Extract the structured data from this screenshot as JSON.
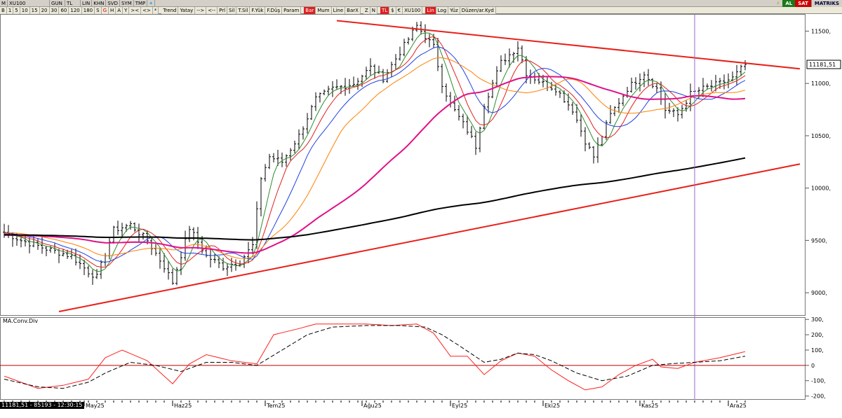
{
  "window": {
    "menu_letter": "M",
    "symbol_tab": "XU100",
    "period_tabs": [
      "GUN",
      "TL",
      "LIN",
      "KHN",
      "SVD",
      "SYM",
      "TMP"
    ]
  },
  "toolbar": {
    "intervals": [
      "B",
      "1",
      "5",
      "10",
      "15",
      "20",
      "30",
      "60",
      "120",
      "180",
      "S",
      "G",
      "H",
      "A",
      "Y"
    ],
    "nav": [
      "><",
      "<>"
    ],
    "tools": [
      "Trend",
      "Yatay",
      "-->",
      "<--",
      "Prl",
      "Sil",
      "T.Sil",
      "F.Yük",
      "F.Düş",
      "Param"
    ],
    "chart_types": [
      "Bar",
      "Mum",
      "Line",
      "BarX"
    ],
    "misc": [
      "Z",
      "N",
      "TL",
      "$",
      "€",
      "XU100",
      "Lin",
      "Log",
      "Yüz",
      "Düzen/ar.Kyd"
    ],
    "al_label": "AL",
    "sat_label": "SAT",
    "brand": "MATRIKS"
  },
  "status": {
    "text": "11181,51 - 85193 - 12:30:15"
  },
  "colors": {
    "price_bar": "#000000",
    "ma_green": "#2e8b2e",
    "ma_red": "#e02020",
    "ma_blue": "#2040e0",
    "ma_orange": "#ff8000",
    "ma_magenta": "#e0108a",
    "ma_black": "#000000",
    "trendline": "#e8201a",
    "macd": "#ff2020",
    "signal": "#000000",
    "zero_line": "#c00000",
    "cursor_line": "#9966cc"
  },
  "chart_data": [
    {
      "type": "ohlc",
      "title": "",
      "price_label": "11181,51",
      "last_price": 11181.51,
      "ylim": [
        8800,
        11650
      ],
      "y_ticks": [
        9000,
        9500,
        10000,
        10500,
        11000,
        11500
      ],
      "y_tick_labels": [
        "9000,",
        "9500,",
        "10000,",
        "10500,",
        "11000,",
        "11500,"
      ],
      "x_months": [
        {
          "label": "May25",
          "day": 19
        },
        {
          "label": "Haz25",
          "day": 40
        },
        {
          "label": "Tem25",
          "day": 62
        },
        {
          "label": "Ağu25",
          "day": 85
        },
        {
          "label": "Eyl25",
          "day": 106
        },
        {
          "label": "Eki25",
          "day": 128
        },
        {
          "label": "Kas25",
          "day": 151
        },
        {
          "label": "Ara25",
          "day": 172
        }
      ],
      "close_keypoints": [
        [
          0,
          9580
        ],
        [
          4,
          9500
        ],
        [
          10,
          9420
        ],
        [
          16,
          9350
        ],
        [
          20,
          9200
        ],
        [
          22,
          9150
        ],
        [
          26,
          9600
        ],
        [
          30,
          9650
        ],
        [
          34,
          9500
        ],
        [
          38,
          9250
        ],
        [
          40,
          9100
        ],
        [
          44,
          9620
        ],
        [
          48,
          9350
        ],
        [
          52,
          9250
        ],
        [
          56,
          9300
        ],
        [
          59,
          9450
        ],
        [
          61,
          10100
        ],
        [
          63,
          10300
        ],
        [
          66,
          10250
        ],
        [
          70,
          10500
        ],
        [
          74,
          10850
        ],
        [
          78,
          10950
        ],
        [
          83,
          11000
        ],
        [
          87,
          11150
        ],
        [
          90,
          11050
        ],
        [
          94,
          11300
        ],
        [
          98,
          11550
        ],
        [
          102,
          11350
        ],
        [
          104,
          11000
        ],
        [
          106,
          10800
        ],
        [
          110,
          10550
        ],
        [
          112,
          10400
        ],
        [
          114,
          10800
        ],
        [
          118,
          11200
        ],
        [
          122,
          11350
        ],
        [
          124,
          11100
        ],
        [
          128,
          11000
        ],
        [
          131,
          10950
        ],
        [
          135,
          10750
        ],
        [
          138,
          10450
        ],
        [
          140,
          10300
        ],
        [
          144,
          10700
        ],
        [
          148,
          10950
        ],
        [
          152,
          11100
        ],
        [
          155,
          10950
        ],
        [
          157,
          10750
        ],
        [
          160,
          10700
        ],
        [
          163,
          10900
        ],
        [
          166,
          10950
        ],
        [
          170,
          11000
        ],
        [
          173,
          11050
        ],
        [
          176,
          11181
        ]
      ],
      "series": [
        {
          "name": "",
          "period": 5,
          "color": "#2e8b2e"
        },
        {
          "name": "",
          "period": 8,
          "color": "#e02020"
        },
        {
          "name": "",
          "period": 13,
          "color": "#2040e0"
        },
        {
          "name": "",
          "period": 21,
          "color": "#ff8000"
        },
        {
          "name": "",
          "period": 50,
          "color": "#e0108a"
        },
        {
          "name": "",
          "period": 200,
          "color": "#000000"
        }
      ],
      "trendlines": [
        {
          "from": [
            13,
            8820
          ],
          "to": [
            189,
            10230
          ]
        },
        {
          "from": [
            79,
            11600
          ],
          "to": [
            189,
            11140
          ]
        }
      ],
      "cursor_day": 164
    },
    {
      "type": "line",
      "title": "MA.Conv.Div",
      "ylim": [
        -220,
        310
      ],
      "y_ticks": [
        -200,
        -100,
        0,
        100,
        200,
        300
      ],
      "y_tick_labels": [
        "-200,",
        "-100,",
        "0",
        "100,",
        "200,",
        "300,"
      ],
      "series": [
        {
          "name": "",
          "role": "macd",
          "keypoints": [
            [
              0,
              -70
            ],
            [
              8,
              -150
            ],
            [
              14,
              -130
            ],
            [
              20,
              -90
            ],
            [
              24,
              50
            ],
            [
              28,
              100
            ],
            [
              34,
              30
            ],
            [
              40,
              -120
            ],
            [
              44,
              10
            ],
            [
              48,
              70
            ],
            [
              54,
              30
            ],
            [
              60,
              10
            ],
            [
              64,
              200
            ],
            [
              70,
              240
            ],
            [
              74,
              270
            ],
            [
              80,
              270
            ],
            [
              86,
              270
            ],
            [
              92,
              260
            ],
            [
              98,
              270
            ],
            [
              102,
              210
            ],
            [
              106,
              60
            ],
            [
              110,
              60
            ],
            [
              114,
              -60
            ],
            [
              118,
              30
            ],
            [
              122,
              80
            ],
            [
              126,
              60
            ],
            [
              130,
              -30
            ],
            [
              134,
              -100
            ],
            [
              138,
              -160
            ],
            [
              142,
              -140
            ],
            [
              146,
              -60
            ],
            [
              150,
              0
            ],
            [
              154,
              40
            ],
            [
              156,
              -10
            ],
            [
              160,
              -20
            ],
            [
              164,
              20
            ],
            [
              170,
              50
            ],
            [
              176,
              90
            ]
          ]
        },
        {
          "name": "",
          "role": "signal",
          "keypoints": [
            [
              0,
              -90
            ],
            [
              8,
              -140
            ],
            [
              14,
              -150
            ],
            [
              20,
              -110
            ],
            [
              24,
              -50
            ],
            [
              30,
              20
            ],
            [
              36,
              0
            ],
            [
              42,
              -40
            ],
            [
              48,
              20
            ],
            [
              54,
              20
            ],
            [
              60,
              0
            ],
            [
              66,
              100
            ],
            [
              72,
              200
            ],
            [
              78,
              250
            ],
            [
              86,
              260
            ],
            [
              94,
              260
            ],
            [
              100,
              250
            ],
            [
              104,
              200
            ],
            [
              108,
              130
            ],
            [
              114,
              20
            ],
            [
              118,
              40
            ],
            [
              122,
              80
            ],
            [
              126,
              70
            ],
            [
              130,
              30
            ],
            [
              136,
              -50
            ],
            [
              142,
              -100
            ],
            [
              148,
              -70
            ],
            [
              154,
              0
            ],
            [
              158,
              10
            ],
            [
              164,
              20
            ],
            [
              170,
              30
            ],
            [
              176,
              60
            ]
          ]
        }
      ]
    }
  ]
}
